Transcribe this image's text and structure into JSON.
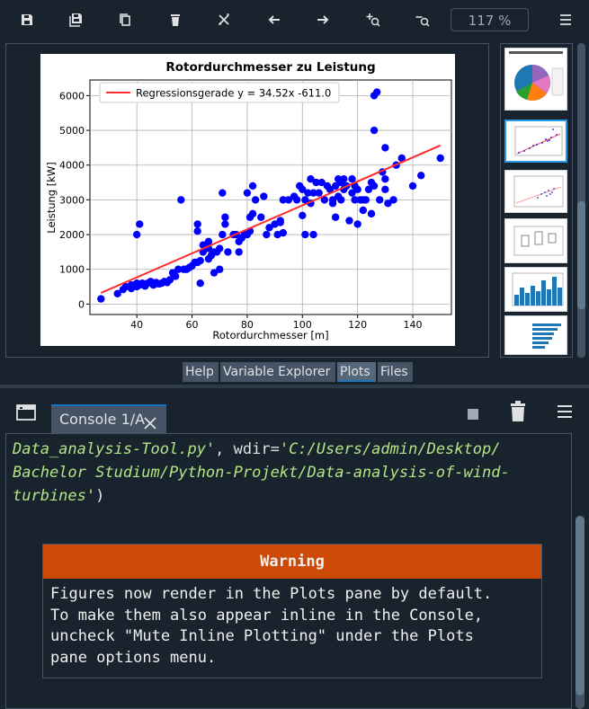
{
  "toolbar": {
    "zoom": "117 %",
    "icons": [
      "save-icon",
      "save-all-icon",
      "copy-icon",
      "trash-icon",
      "close-all-icon",
      "arrow-left-icon",
      "arrow-right-icon",
      "zoom-in-icon",
      "zoom-out-icon",
      "menu-icon"
    ]
  },
  "plot": {
    "title": "Rotordurchmesser zu Leistung",
    "legend": "Regressionsgerade y = 34.52x -611.0",
    "xlabel": "Rotordurchmesser [m]",
    "ylabel": "Leistung [kW]"
  },
  "chart_data": {
    "type": "scatter",
    "title": "Rotordurchmesser zu Leistung",
    "xlabel": "Rotordurchmesser [m]",
    "ylabel": "Leistung [kW]",
    "xlim": [
      23,
      154
    ],
    "ylim": [
      -300,
      6450
    ],
    "xticks": [
      40,
      60,
      80,
      100,
      120,
      140
    ],
    "yticks": [
      0,
      1000,
      2000,
      3000,
      4000,
      5000,
      6000
    ],
    "grid": true,
    "legend_position": "top-left",
    "colors": {
      "points": "#0000ff",
      "line": "#ff2b2b"
    },
    "regression": {
      "name": "Regressionsgerade y = 34.52x -611.0",
      "slope": 34.52,
      "intercept": -611.0,
      "x_range": [
        27,
        150
      ]
    },
    "points": [
      [
        27,
        150
      ],
      [
        33,
        300
      ],
      [
        35,
        420
      ],
      [
        36,
        500
      ],
      [
        38,
        450
      ],
      [
        38,
        550
      ],
      [
        40,
        500
      ],
      [
        40,
        600
      ],
      [
        41,
        550
      ],
      [
        42,
        600
      ],
      [
        43,
        520
      ],
      [
        44,
        600
      ],
      [
        45,
        650
      ],
      [
        46,
        550
      ],
      [
        47,
        620
      ],
      [
        48,
        580
      ],
      [
        49,
        600
      ],
      [
        50,
        650
      ],
      [
        51,
        620
      ],
      [
        52,
        700
      ],
      [
        53,
        900
      ],
      [
        54,
        800
      ],
      [
        55,
        1000
      ],
      [
        57,
        1000
      ],
      [
        58,
        1000
      ],
      [
        59,
        1050
      ],
      [
        60,
        1100
      ],
      [
        61,
        1200
      ],
      [
        62,
        1200
      ],
      [
        63,
        1250
      ],
      [
        63,
        600
      ],
      [
        64,
        1500
      ],
      [
        64,
        1700
      ],
      [
        65,
        1700
      ],
      [
        66,
        1800
      ],
      [
        66,
        1300
      ],
      [
        67,
        1400
      ],
      [
        68,
        1500
      ],
      [
        69,
        1500
      ],
      [
        70,
        1000
      ],
      [
        70,
        1600
      ],
      [
        71,
        2000
      ],
      [
        72,
        2300
      ],
      [
        73,
        1500
      ],
      [
        75,
        2000
      ],
      [
        76,
        2000
      ],
      [
        77,
        1800
      ],
      [
        78,
        1900
      ],
      [
        79,
        2000
      ],
      [
        80,
        2000
      ],
      [
        81,
        2500
      ],
      [
        81,
        2100
      ],
      [
        82,
        3400
      ],
      [
        82,
        2600
      ],
      [
        83,
        3000
      ],
      [
        85,
        2500
      ],
      [
        87,
        2000
      ],
      [
        88,
        2200
      ],
      [
        90,
        2300
      ],
      [
        91,
        2000
      ],
      [
        92,
        2350
      ],
      [
        93,
        3000
      ],
      [
        93,
        2050
      ],
      [
        95,
        3000
      ],
      [
        97,
        3100
      ],
      [
        99,
        3400
      ],
      [
        100,
        2550
      ],
      [
        100,
        3300
      ],
      [
        101,
        3000
      ],
      [
        101,
        2000
      ],
      [
        103,
        3600
      ],
      [
        103,
        2900
      ],
      [
        104,
        3200
      ],
      [
        104,
        2000
      ],
      [
        105,
        3500
      ],
      [
        106,
        3200
      ],
      [
        107,
        3500
      ],
      [
        108,
        3000
      ],
      [
        110,
        3300
      ],
      [
        111,
        3000
      ],
      [
        112,
        2500
      ],
      [
        112,
        3400
      ],
      [
        113,
        3600
      ],
      [
        113,
        3100
      ],
      [
        114,
        3000
      ],
      [
        115,
        3600
      ],
      [
        115,
        3300
      ],
      [
        116,
        3400
      ],
      [
        117,
        2400
      ],
      [
        118,
        3200
      ],
      [
        118,
        3600
      ],
      [
        119,
        3000
      ],
      [
        120,
        2300
      ],
      [
        120,
        3300
      ],
      [
        121,
        3000
      ],
      [
        122,
        3000
      ],
      [
        123,
        3000
      ],
      [
        124,
        3300
      ],
      [
        125,
        2600
      ],
      [
        125,
        3500
      ],
      [
        126,
        6000
      ],
      [
        126,
        5000
      ],
      [
        126,
        3400
      ],
      [
        127,
        6100
      ],
      [
        128,
        3000
      ],
      [
        129,
        3800
      ],
      [
        130,
        3600
      ],
      [
        130,
        3300
      ],
      [
        130,
        4500
      ],
      [
        131,
        2900
      ],
      [
        133,
        3000
      ],
      [
        134,
        4000
      ],
      [
        136,
        4200
      ],
      [
        140,
        3400
      ],
      [
        143,
        3700
      ],
      [
        150,
        4200
      ],
      [
        40,
        2000
      ],
      [
        41,
        2300
      ],
      [
        56,
        3000
      ],
      [
        62,
        2300
      ],
      [
        62,
        2100
      ],
      [
        66,
        1600
      ],
      [
        68,
        900
      ],
      [
        71,
        3200
      ],
      [
        72,
        2500
      ],
      [
        77,
        1500
      ],
      [
        80,
        3200
      ],
      [
        86,
        3100
      ],
      [
        92,
        2400
      ],
      [
        98,
        3000
      ],
      [
        102,
        3200
      ],
      [
        109,
        3400
      ],
      [
        111,
        2900
      ],
      [
        114,
        3500
      ],
      [
        119,
        3400
      ],
      [
        122,
        2700
      ]
    ]
  },
  "tabs": [
    "Help",
    "Variable Explorer",
    "Plots",
    "Files"
  ],
  "active_tab": "Plots",
  "console": {
    "tab_label": "Console 1/A",
    "code_line0_str": "Data_analysis-Tool.py'",
    "code_line0_rest": ", wdir=",
    "code_line0_str2": "'C:/Users/admin/Desktop/",
    "code_line1": "Bachelor Studium/Python-Projekt/Data-analysis-of-wind-",
    "code_line2_str": "turbines'",
    "code_line2_rest": ")",
    "warning_title": "Warning",
    "warning_text": "Figures now render in the Plots pane by default.\nTo make them also appear inline in the Console,\nuncheck \"Mute Inline Plotting\" under the Plots\npane options menu."
  }
}
